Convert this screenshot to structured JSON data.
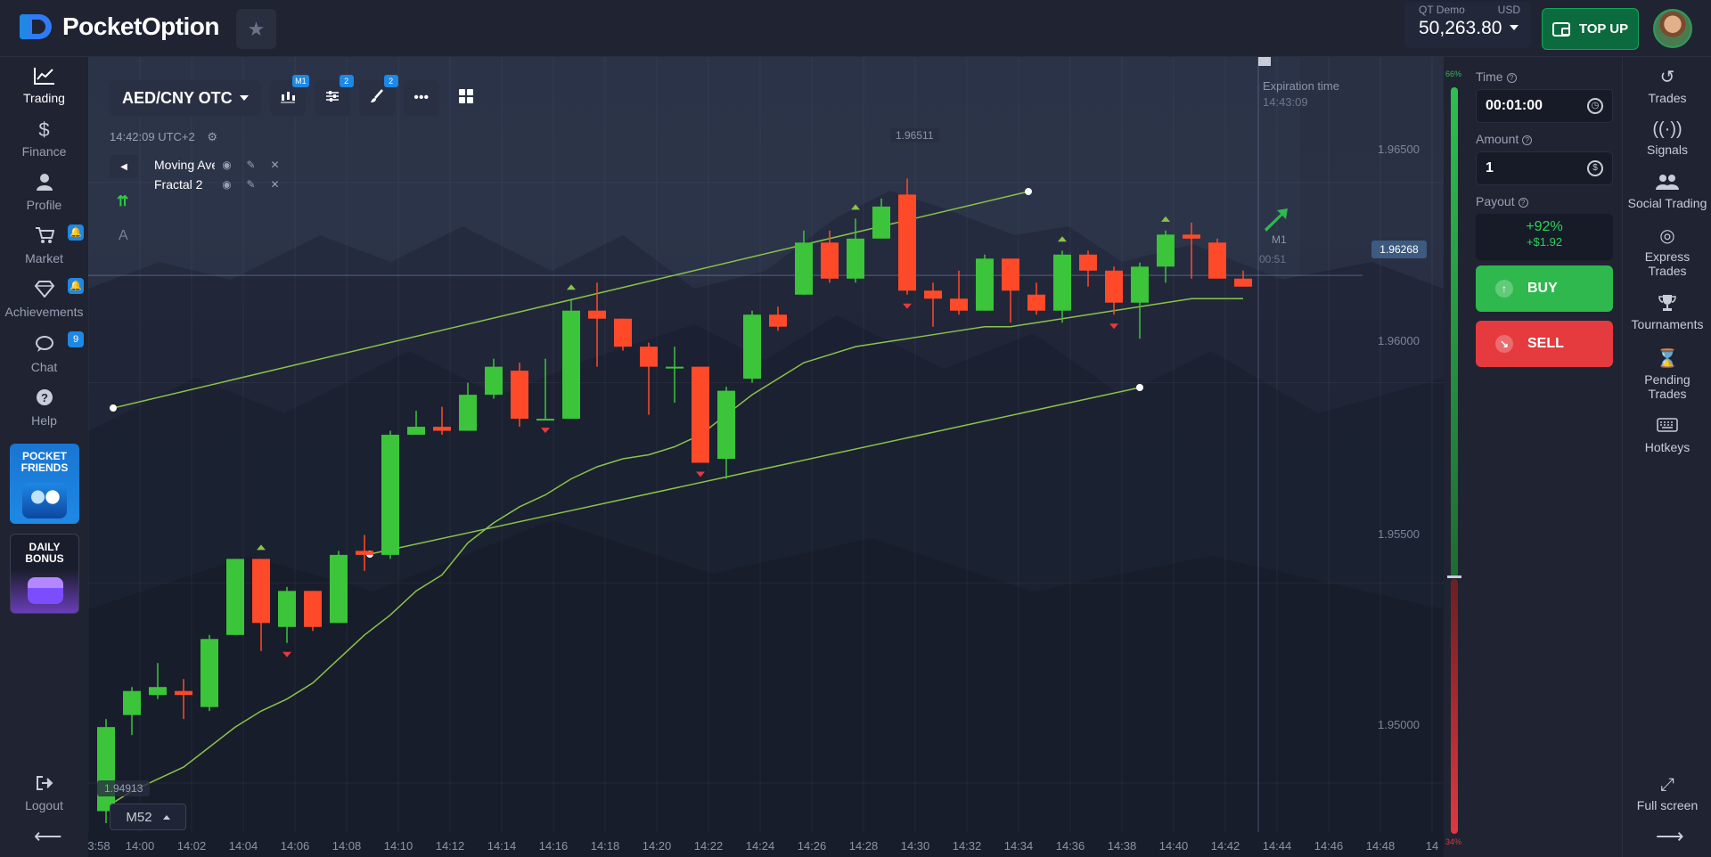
{
  "brand": {
    "name": "PocketOption"
  },
  "account": {
    "type": "QT Demo",
    "currency": "USD",
    "balance": "50,263.80"
  },
  "header": {
    "topup_label": "TOP UP"
  },
  "left_nav": [
    {
      "label": "Trading",
      "icon": "chart-line-icon"
    },
    {
      "label": "Finance",
      "icon": "dollar-icon"
    },
    {
      "label": "Profile",
      "icon": "user-icon"
    },
    {
      "label": "Market",
      "icon": "cart-icon"
    },
    {
      "label": "Achievements",
      "icon": "diamond-icon"
    },
    {
      "label": "Chat",
      "icon": "chat-icon",
      "badge": "9"
    },
    {
      "label": "Help",
      "icon": "help-icon"
    }
  ],
  "promos": {
    "friends": "POCKET FRIENDS",
    "bonus": "DAILY BONUS"
  },
  "logout_label": "Logout",
  "chart": {
    "pair": "AED/CNY OTC",
    "timeframe_badge": "M1",
    "indicator_count": "2",
    "drawing_count": "2",
    "server_time": "14:42:09 UTC+2",
    "indicators": [
      "Moving Avera...",
      "Fractal 2"
    ],
    "tool_text": "A",
    "timeframe": "M52",
    "current_price": "1.96268",
    "high_label": "1.96511",
    "low_label": "1.94913",
    "expiration_label": "Expiration time",
    "expiration_time": "14:43:09",
    "expiry_tf": "M1",
    "expiry_countdown": "00:51",
    "price_ticks": [
      "1.96500",
      "1.96000",
      "1.95500",
      "1.95000"
    ],
    "time_ticks": [
      "3:58",
      "14:00",
      "14:02",
      "14:04",
      "14:06",
      "14:08",
      "14:10",
      "14:12",
      "14:14",
      "14:16",
      "14:18",
      "14:20",
      "14:22",
      "14:24",
      "14:26",
      "14:28",
      "14:30",
      "14:32",
      "14:34",
      "14:36",
      "14:38",
      "14:40",
      "14:42",
      "14:44",
      "14:46",
      "14:48",
      "14"
    ]
  },
  "sentiment": {
    "buy_pct": "66%",
    "sell_pct": "34%",
    "buy_fraction": 0.66
  },
  "trade_panel": {
    "time_label": "Time",
    "time_value": "00:01:00",
    "amount_label": "Amount",
    "amount_value": "1",
    "payout_label": "Payout",
    "payout_pct": "+92%",
    "payout_amount": "+$1.92",
    "buy_label": "BUY",
    "sell_label": "SELL"
  },
  "right_nav": [
    {
      "label": "Trades",
      "icon": "history-icon"
    },
    {
      "label": "Signals",
      "icon": "signal-icon"
    },
    {
      "label": "Social Trading",
      "icon": "users-icon"
    },
    {
      "label": "Express Trades",
      "icon": "target-icon"
    },
    {
      "label": "Tournaments",
      "icon": "trophy-icon"
    },
    {
      "label": "Pending Trades",
      "icon": "hourglass-icon"
    },
    {
      "label": "Hotkeys",
      "icon": "keyboard-icon"
    },
    {
      "label": "Full screen",
      "icon": "fullscreen-icon"
    }
  ],
  "colors": {
    "up": "#3cc43a",
    "down": "#ff4a2a",
    "accent": "#1e88e5",
    "buy": "#2fb84e",
    "sell": "#e53a3e"
  },
  "chart_data": {
    "type": "candlestick",
    "y_range": [
      1.949,
      1.9668
    ],
    "candles": [
      {
        "o": 1.9493,
        "c": 1.9514,
        "h": 1.9516,
        "l": 1.949
      },
      {
        "o": 1.9517,
        "c": 1.9523,
        "h": 1.9524,
        "l": 1.9512
      },
      {
        "o": 1.9522,
        "c": 1.9524,
        "h": 1.953,
        "l": 1.9521
      },
      {
        "o": 1.9523,
        "c": 1.9522,
        "h": 1.9526,
        "l": 1.9516
      },
      {
        "o": 1.9519,
        "c": 1.9536,
        "h": 1.9537,
        "l": 1.9518
      },
      {
        "o": 1.9537,
        "c": 1.9556,
        "h": 1.9556,
        "l": 1.9537
      },
      {
        "o": 1.9556,
        "c": 1.954,
        "h": 1.9556,
        "l": 1.9533
      },
      {
        "o": 1.9539,
        "c": 1.9548,
        "h": 1.9549,
        "l": 1.9535
      },
      {
        "o": 1.9548,
        "c": 1.9539,
        "h": 1.9548,
        "l": 1.9538
      },
      {
        "o": 1.954,
        "c": 1.9557,
        "h": 1.9558,
        "l": 1.954
      },
      {
        "o": 1.9558,
        "c": 1.9557,
        "h": 1.9562,
        "l": 1.9553
      },
      {
        "o": 1.9557,
        "c": 1.9587,
        "h": 1.9588,
        "l": 1.9556
      },
      {
        "o": 1.9587,
        "c": 1.9589,
        "h": 1.9593,
        "l": 1.9587
      },
      {
        "o": 1.9589,
        "c": 1.9588,
        "h": 1.9594,
        "l": 1.9587
      },
      {
        "o": 1.9588,
        "c": 1.9597,
        "h": 1.96,
        "l": 1.9588
      },
      {
        "o": 1.9597,
        "c": 1.9604,
        "h": 1.9606,
        "l": 1.9596
      },
      {
        "o": 1.9603,
        "c": 1.9591,
        "h": 1.9605,
        "l": 1.9589
      },
      {
        "o": 1.9591,
        "c": 1.9591,
        "h": 1.9606,
        "l": 1.9591
      },
      {
        "o": 1.9591,
        "c": 1.9618,
        "h": 1.9621,
        "l": 1.9591
      },
      {
        "o": 1.9618,
        "c": 1.9616,
        "h": 1.9625,
        "l": 1.9604
      },
      {
        "o": 1.9616,
        "c": 1.9609,
        "h": 1.9616,
        "l": 1.9608
      },
      {
        "o": 1.9609,
        "c": 1.9604,
        "h": 1.961,
        "l": 1.9592
      },
      {
        "o": 1.9604,
        "c": 1.9604,
        "h": 1.9609,
        "l": 1.9595
      },
      {
        "o": 1.9604,
        "c": 1.958,
        "h": 1.9604,
        "l": 1.958
      },
      {
        "o": 1.9581,
        "c": 1.9598,
        "h": 1.9599,
        "l": 1.9576
      },
      {
        "o": 1.9601,
        "c": 1.9617,
        "h": 1.9618,
        "l": 1.96
      },
      {
        "o": 1.9617,
        "c": 1.9614,
        "h": 1.9619,
        "l": 1.9613
      },
      {
        "o": 1.9622,
        "c": 1.9635,
        "h": 1.9638,
        "l": 1.9622
      },
      {
        "o": 1.9635,
        "c": 1.9626,
        "h": 1.9638,
        "l": 1.9625
      },
      {
        "o": 1.9626,
        "c": 1.9636,
        "h": 1.9641,
        "l": 1.9625
      },
      {
        "o": 1.9636,
        "c": 1.9644,
        "h": 1.9646,
        "l": 1.9636
      },
      {
        "o": 1.9647,
        "c": 1.9623,
        "h": 1.9651,
        "l": 1.9622
      },
      {
        "o": 1.9623,
        "c": 1.9621,
        "h": 1.9625,
        "l": 1.9614
      },
      {
        "o": 1.9621,
        "c": 1.9618,
        "h": 1.9628,
        "l": 1.9617
      },
      {
        "o": 1.9618,
        "c": 1.9631,
        "h": 1.9632,
        "l": 1.9618
      },
      {
        "o": 1.9631,
        "c": 1.9623,
        "h": 1.9631,
        "l": 1.9615
      },
      {
        "o": 1.9622,
        "c": 1.9618,
        "h": 1.9625,
        "l": 1.9617
      },
      {
        "o": 1.9618,
        "c": 1.9632,
        "h": 1.9633,
        "l": 1.9615
      },
      {
        "o": 1.9632,
        "c": 1.9628,
        "h": 1.9633,
        "l": 1.9624
      },
      {
        "o": 1.9628,
        "c": 1.962,
        "h": 1.9629,
        "l": 1.9617
      },
      {
        "o": 1.962,
        "c": 1.9629,
        "h": 1.963,
        "l": 1.9611
      },
      {
        "o": 1.9629,
        "c": 1.9637,
        "h": 1.9638,
        "l": 1.9625
      },
      {
        "o": 1.9637,
        "c": 1.9636,
        "h": 1.964,
        "l": 1.9626
      },
      {
        "o": 1.9635,
        "c": 1.9626,
        "h": 1.9636,
        "l": 1.9626
      },
      {
        "o": 1.9626,
        "c": 1.9624,
        "h": 1.9628,
        "l": 1.9624
      }
    ],
    "moving_average": [
      1.9494,
      1.9498,
      1.9501,
      1.9504,
      1.9509,
      1.9514,
      1.9518,
      1.9521,
      1.9525,
      1.9531,
      1.9537,
      1.9542,
      1.9548,
      1.9552,
      1.956,
      1.9565,
      1.9569,
      1.9572,
      1.9576,
      1.9579,
      1.9581,
      1.9582,
      1.9584,
      1.9587,
      1.9592,
      1.9597,
      1.9601,
      1.9605,
      1.9607,
      1.9609,
      1.961,
      1.9611,
      1.9612,
      1.9613,
      1.9614,
      1.9614,
      1.9615,
      1.9616,
      1.9617,
      1.9618,
      1.9619,
      1.962,
      1.9621,
      1.9621,
      1.9621
    ]
  }
}
